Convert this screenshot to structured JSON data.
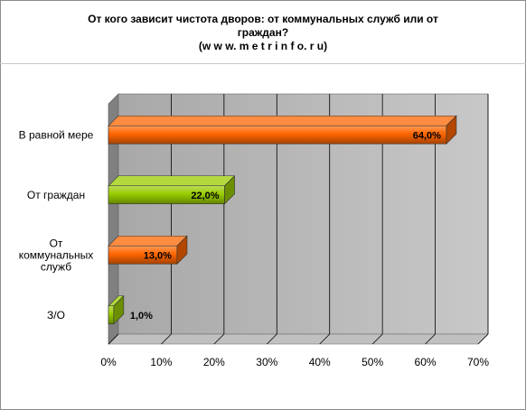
{
  "header": {
    "title_line1": "От кого  зависит чистота дворов: от коммунальных  служб или от",
    "title_line2": "граждан?",
    "title_line3": "(w w w. m e t r i n f o. r u)"
  },
  "chart_data": {
    "type": "bar",
    "orientation": "horizontal",
    "categories": [
      "В равной мере",
      "От граждан",
      "От коммунальных служб",
      "З/О"
    ],
    "category_label_lines": [
      [
        "В равной мере"
      ],
      [
        "От граждан"
      ],
      [
        "От",
        "коммунальных",
        "служб"
      ],
      [
        "З/О"
      ]
    ],
    "values": [
      64,
      22,
      13,
      1
    ],
    "value_labels": [
      "64,0%",
      "22,0%",
      "13,0%",
      "1,0%"
    ],
    "bar_colors": [
      "#ff6600",
      "#99cc00",
      "#ff6600",
      "#99cc00"
    ],
    "xlim": [
      0,
      70
    ],
    "x_ticks": [
      0,
      10,
      20,
      30,
      40,
      50,
      60,
      70
    ],
    "x_tick_labels": [
      "0%",
      "10%",
      "20%",
      "30%",
      "40%",
      "50%",
      "60%",
      "70%"
    ],
    "grid": true,
    "legend": "none"
  }
}
